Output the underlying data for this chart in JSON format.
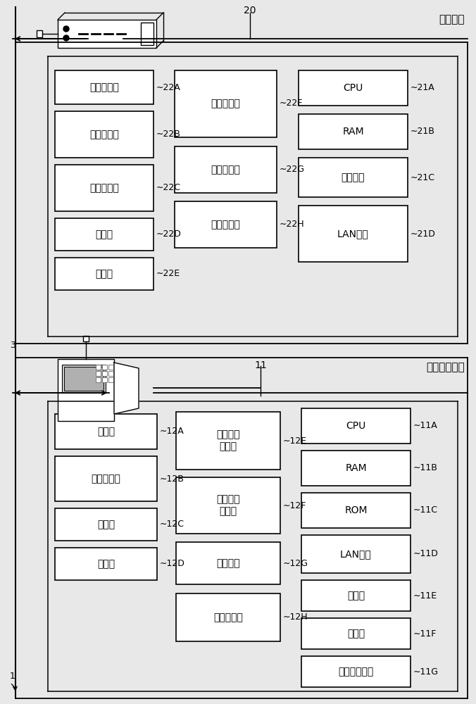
{
  "bg_color": "#e8e8e8",
  "white": "#ffffff",
  "black": "#000000",
  "title_top": "管理装置",
  "title_bottom": "机体控制装置",
  "label_20": "20",
  "label_11": "11",
  "label_3": "3",
  "label_1": "1",
  "top_boxes_col1": [
    {
      "label": "第一通信部",
      "tag": "22A"
    },
    {
      "label": "信息取得部",
      "tag": "22B"
    },
    {
      "label": "信息储存部",
      "tag": "22C"
    },
    {
      "label": "分析部",
      "tag": "22D"
    },
    {
      "label": "发送部",
      "tag": "22E"
    }
  ],
  "top_boxes_col2": [
    {
      "label": "消息输入部",
      "tag": "22F"
    },
    {
      "label": "图像转换部",
      "tag": "22G"
    },
    {
      "label": "第二通信部",
      "tag": "22H"
    }
  ],
  "top_boxes_col3": [
    {
      "label": "CPU",
      "tag": "21A"
    },
    {
      "label": "RAM",
      "tag": "21B"
    },
    {
      "label": "存储装置",
      "tag": "21C"
    },
    {
      "label": "LAN接口",
      "tag": "21D"
    }
  ],
  "bot_boxes_col1": [
    {
      "label": "通信部",
      "tag": "12A"
    },
    {
      "label": "信息存储部",
      "tag": "12B"
    },
    {
      "label": "发送部",
      "tag": "12C"
    },
    {
      "label": "接收部",
      "tag": "12D"
    }
  ],
  "bot_boxes_col2": [
    {
      "label": "通知信息\n管理部",
      "tag": "12E"
    },
    {
      "label": "保养信息\n输入部",
      "tag": "12F"
    },
    {
      "label": "灯控制部",
      "tag": "12G"
    },
    {
      "label": "动作控制部",
      "tag": "12H"
    }
  ],
  "bot_boxes_col3": [
    {
      "label": "CPU",
      "tag": "11A"
    },
    {
      "label": "RAM",
      "tag": "11B"
    },
    {
      "label": "ROM",
      "tag": "11C"
    },
    {
      "label": "LAN接口",
      "tag": "11D"
    },
    {
      "label": "显示器",
      "tag": "11E"
    },
    {
      "label": "输入键",
      "tag": "11F"
    },
    {
      "label": "输入输出端口",
      "tag": "11G"
    }
  ]
}
